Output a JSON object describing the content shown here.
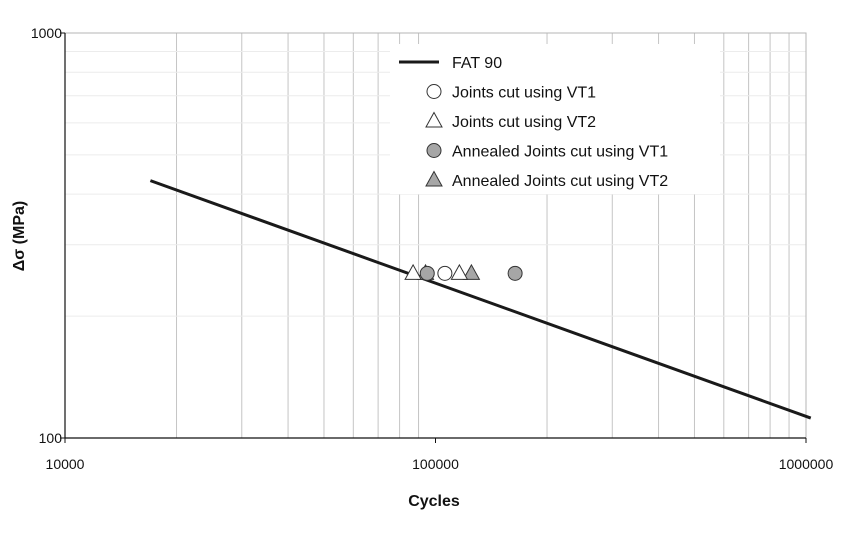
{
  "chart_data": {
    "type": "scatter",
    "xlabel": "Cycles",
    "ylabel": "Δσ (MPa)",
    "x_scale": "log",
    "y_scale": "log",
    "xlim": [
      10000,
      1000000
    ],
    "ylim": [
      100,
      1000
    ],
    "x_ticks": [
      "10000",
      "100000",
      "1000000"
    ],
    "y_ticks": [
      "100",
      "1000"
    ],
    "grid": "vertical major and minor gridlines, faint horizontal minor gridlines",
    "legend_position": "top-right",
    "series": [
      {
        "name": "FAT 90",
        "kind": "line",
        "color": "#1a1a1a",
        "points": [
          [
            17000,
            432
          ],
          [
            1030000,
            112
          ]
        ]
      },
      {
        "name": "Joints cut using VT1",
        "kind": "marker",
        "marker": "circle",
        "fill": "#ffffff",
        "points": [
          [
            106000,
            255
          ]
        ]
      },
      {
        "name": "Joints cut using VT2",
        "kind": "marker",
        "marker": "triangle",
        "fill": "#ffffff",
        "points": [
          [
            87000,
            255
          ],
          [
            116000,
            255
          ]
        ]
      },
      {
        "name": "Annealed Joints cut using VT1",
        "kind": "marker",
        "marker": "circle",
        "fill": "#a6a6a6",
        "points": [
          [
            95000,
            255
          ],
          [
            164000,
            255
          ]
        ]
      },
      {
        "name": "Annealed Joints cut using VT2",
        "kind": "marker",
        "marker": "triangle",
        "fill": "#a6a6a6",
        "points": [
          [
            94000,
            255
          ],
          [
            125000,
            255
          ]
        ]
      }
    ]
  }
}
